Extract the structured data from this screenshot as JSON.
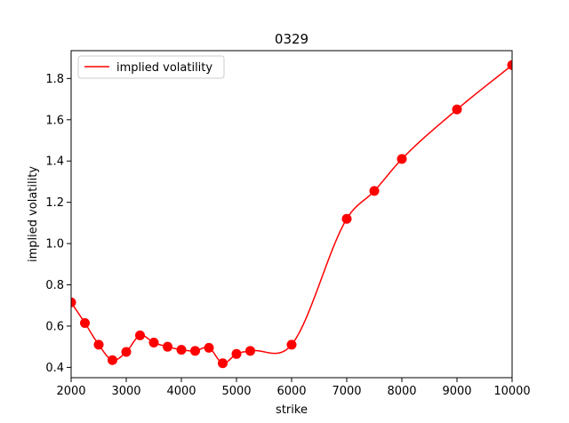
{
  "chart_data": {
    "type": "line",
    "title": "0329",
    "xlabel": "strike",
    "ylabel": "implied volatility",
    "xlim": [
      2000,
      10000
    ],
    "ylim": [
      0.35,
      1.935
    ],
    "xticks": [
      2000,
      3000,
      4000,
      5000,
      6000,
      7000,
      8000,
      9000,
      10000
    ],
    "yticks": [
      0.4,
      0.6,
      0.8,
      1.0,
      1.2,
      1.4,
      1.6,
      1.8
    ],
    "ytick_labels": [
      "0.4",
      "0.6",
      "0.8",
      "1.0",
      "1.2",
      "1.4",
      "1.6",
      "1.8"
    ],
    "grid": false,
    "legend": {
      "position": "top-left",
      "entries": [
        "implied volatility"
      ]
    },
    "color": "#ff0000",
    "series": [
      {
        "name": "implied volatility",
        "x": [
          2000,
          2250,
          2500,
          2750,
          3000,
          3250,
          3500,
          3750,
          4000,
          4250,
          4500,
          4750,
          5000,
          5250,
          6000,
          7000,
          7500,
          8000,
          9000,
          10000
        ],
        "y": [
          0.715,
          0.615,
          0.51,
          0.435,
          0.475,
          0.555,
          0.52,
          0.5,
          0.485,
          0.48,
          0.495,
          0.42,
          0.465,
          0.48,
          0.51,
          1.12,
          1.255,
          1.41,
          1.65,
          1.865
        ]
      }
    ]
  }
}
